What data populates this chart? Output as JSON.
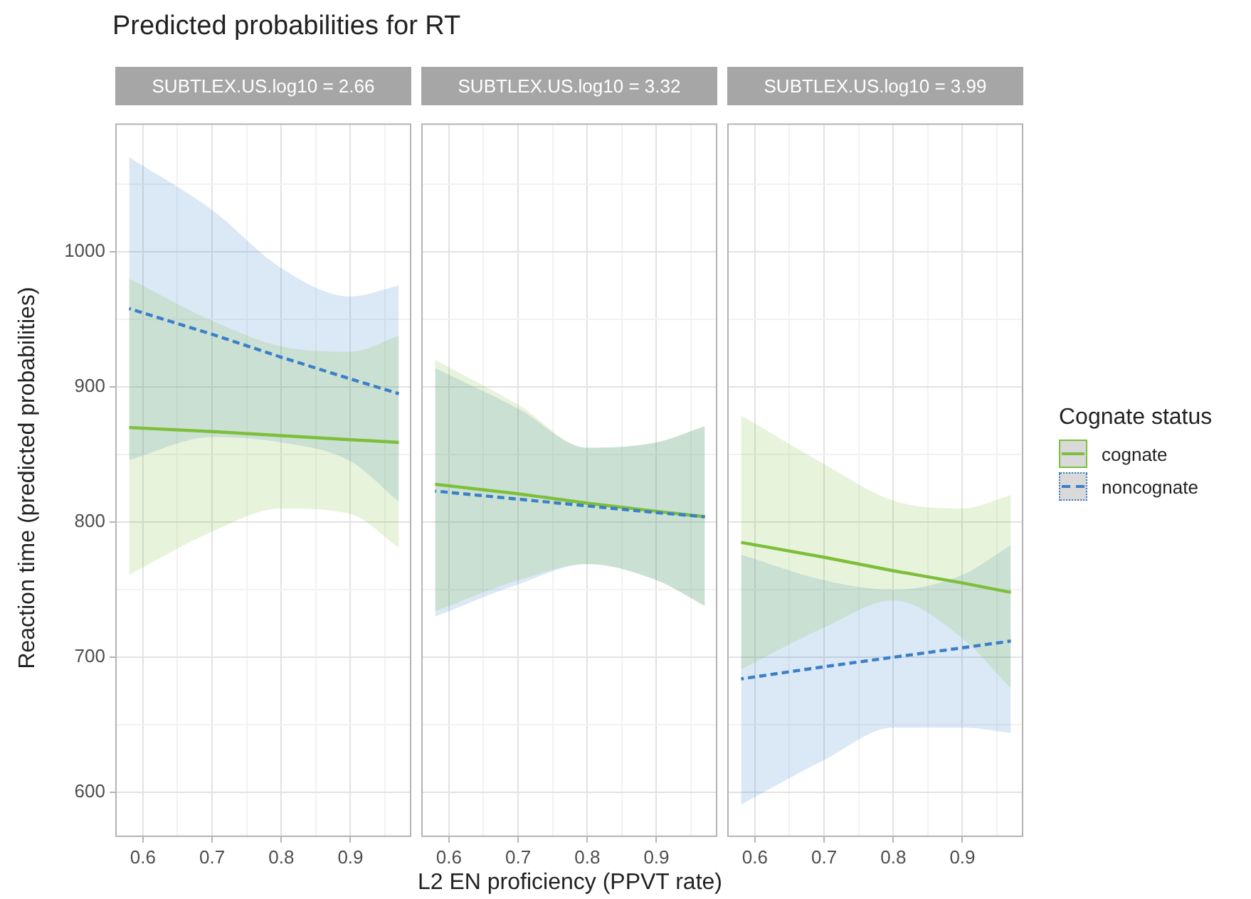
{
  "chart_data": [
    {
      "type": "line",
      "title": "Predicted probabilities for RT",
      "subtitle": "SUBTLEX.US.log10 = 2.66",
      "ylabel": "Reaction time (predicted probabilities)",
      "legend": "right",
      "legend_title": "Cognate status",
      "x": [
        0.58,
        0.7,
        0.8,
        0.9,
        0.97
      ],
      "series": [
        {
          "name": "cognate",
          "color": "#7dbf3b",
          "line_style": "solid",
          "values": [
            870,
            867,
            864,
            861,
            859
          ],
          "lower": [
            761,
            793,
            810,
            806,
            781
          ],
          "upper": [
            980,
            949,
            930,
            926,
            938
          ]
        },
        {
          "name": "noncognate",
          "color": "#3a7fc8",
          "line_style": "dashed",
          "values": [
            958,
            939,
            922,
            906,
            895
          ],
          "lower": [
            846,
            863,
            859,
            845,
            815
          ],
          "upper": [
            1070,
            1031,
            988,
            967,
            975
          ]
        }
      ],
      "xlim": [
        0.56,
        0.988
      ],
      "ylim": [
        567,
        1095
      ],
      "xticks": [
        0.6,
        {
          "value": 0.65,
          "label": null
        },
        0.7,
        {
          "value": 0.75,
          "label": null
        },
        0.8,
        {
          "value": 0.85,
          "label": null
        },
        0.9,
        {
          "value": 0.95,
          "label": null
        }
      ],
      "yticks": [
        600,
        {
          "value": 650,
          "label": null
        },
        700,
        {
          "value": 750,
          "label": null
        },
        800,
        {
          "value": 850,
          "label": null
        },
        900,
        {
          "value": 950,
          "label": null
        },
        1000,
        {
          "value": 1050,
          "label": null
        }
      ],
      "grid": true
    },
    {
      "type": "line",
      "subtitle": "SUBTLEX.US.log10 = 3.32",
      "xlabel": "L2 EN proficiency (PPVT rate)",
      "legend": "right",
      "x": [
        0.58,
        0.7,
        0.8,
        0.9,
        0.97
      ],
      "series": [
        {
          "name": "cognate",
          "color": "#7dbf3b",
          "line_style": "solid",
          "values": [
            828,
            821,
            814,
            808,
            804
          ],
          "lower": [
            734,
            757,
            769,
            757,
            738
          ],
          "upper": [
            920,
            887,
            855,
            859,
            871
          ]
        },
        {
          "name": "noncognate",
          "color": "#3a7fc8",
          "line_style": "dashed",
          "values": [
            823,
            817,
            812,
            807,
            804
          ],
          "lower": [
            730,
            754,
            769,
            757,
            738
          ],
          "upper": [
            914,
            884,
            855,
            859,
            871
          ]
        }
      ],
      "xlim": [
        0.56,
        0.988
      ],
      "ylim": [
        567,
        1095
      ],
      "xticks": [
        0.6,
        {
          "value": 0.65,
          "label": null
        },
        0.7,
        {
          "value": 0.75,
          "label": null
        },
        0.8,
        {
          "value": 0.85,
          "label": null
        },
        0.9,
        {
          "value": 0.95,
          "label": null
        }
      ],
      "yticks": [
        600,
        {
          "value": 650,
          "label": null
        },
        700,
        {
          "value": 750,
          "label": null
        },
        800,
        {
          "value": 850,
          "label": null
        },
        900,
        {
          "value": 950,
          "label": null
        },
        1000,
        {
          "value": 1050,
          "label": null
        }
      ],
      "grid": true,
      "tick_labels": "x"
    },
    {
      "type": "line",
      "subtitle": "SUBTLEX.US.log10 = 3.99",
      "legend": "right",
      "x": [
        0.58,
        0.7,
        0.8,
        0.9,
        0.97
      ],
      "series": [
        {
          "name": "cognate",
          "color": "#7dbf3b",
          "line_style": "solid",
          "values": [
            785,
            774,
            764,
            755,
            748
          ],
          "lower": [
            691,
            722,
            742,
            714,
            677
          ],
          "upper": [
            879,
            843,
            816,
            810,
            820
          ]
        },
        {
          "name": "noncognate",
          "color": "#3a7fc8",
          "line_style": "dashed",
          "values": [
            684,
            693,
            700,
            707,
            712
          ],
          "lower": [
            591,
            624,
            648,
            648,
            644
          ],
          "upper": [
            776,
            757,
            750,
            761,
            783
          ]
        }
      ],
      "xlim": [
        0.56,
        0.988
      ],
      "ylim": [
        567,
        1095
      ],
      "xticks": [
        0.6,
        {
          "value": 0.65,
          "label": null
        },
        0.7,
        {
          "value": 0.75,
          "label": null
        },
        0.8,
        {
          "value": 0.85,
          "label": null
        },
        0.9,
        {
          "value": 0.95,
          "label": null
        }
      ],
      "yticks": [
        600,
        {
          "value": 650,
          "label": null
        },
        700,
        {
          "value": 750,
          "label": null
        },
        800,
        {
          "value": 850,
          "label": null
        },
        900,
        {
          "value": 950,
          "label": null
        },
        1000,
        {
          "value": 1050,
          "label": null
        }
      ],
      "grid": true,
      "tick_labels": "x"
    }
  ]
}
